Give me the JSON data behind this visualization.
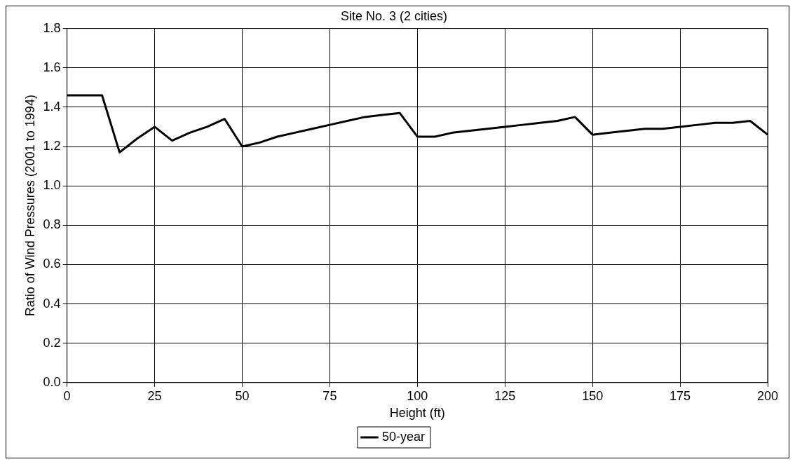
{
  "chart_data": {
    "type": "line",
    "title": "Site No. 3 (2 cities)",
    "xlabel": "Height (ft)",
    "ylabel": "Ratio of Wind Pressures (2001 to 1994)",
    "x": [
      0,
      5,
      10,
      15,
      20,
      25,
      30,
      35,
      40,
      45,
      50,
      55,
      60,
      65,
      70,
      75,
      80,
      85,
      90,
      95,
      100,
      105,
      110,
      115,
      120,
      125,
      130,
      135,
      140,
      145,
      150,
      155,
      160,
      165,
      170,
      175,
      180,
      185,
      190,
      195,
      200
    ],
    "series": [
      {
        "name": "50-year",
        "color": "#000000",
        "values": [
          1.46,
          1.46,
          1.46,
          1.17,
          1.24,
          1.3,
          1.23,
          1.27,
          1.3,
          1.34,
          1.2,
          1.22,
          1.25,
          1.27,
          1.29,
          1.31,
          1.33,
          1.35,
          1.36,
          1.37,
          1.25,
          1.25,
          1.27,
          1.28,
          1.29,
          1.3,
          1.31,
          1.32,
          1.33,
          1.35,
          1.26,
          1.27,
          1.28,
          1.29,
          1.29,
          1.3,
          1.31,
          1.32,
          1.32,
          1.33,
          1.26
        ]
      }
    ],
    "xlim": [
      0,
      200
    ],
    "xticks": [
      0,
      25,
      50,
      75,
      100,
      125,
      150,
      175,
      200
    ],
    "ylim": [
      0,
      1.8
    ],
    "yticks": [
      {
        "value": 0,
        "label": "0.0"
      },
      {
        "value": 0.2,
        "label": "0.2"
      },
      {
        "value": 0.4,
        "label": "0.4"
      },
      {
        "value": 0.6,
        "label": "0.6"
      },
      {
        "value": 0.8,
        "label": "0.8"
      },
      {
        "value": 1,
        "label": "1.0"
      },
      {
        "value": 1.2,
        "label": "1.2"
      },
      {
        "value": 1.4,
        "label": "1.4"
      },
      {
        "value": 1.6,
        "label": "1.6"
      },
      {
        "value": 1.8,
        "label": "1.8"
      }
    ],
    "grid": true,
    "legend": "bottom",
    "marker": "none",
    "line_style": "solid"
  }
}
